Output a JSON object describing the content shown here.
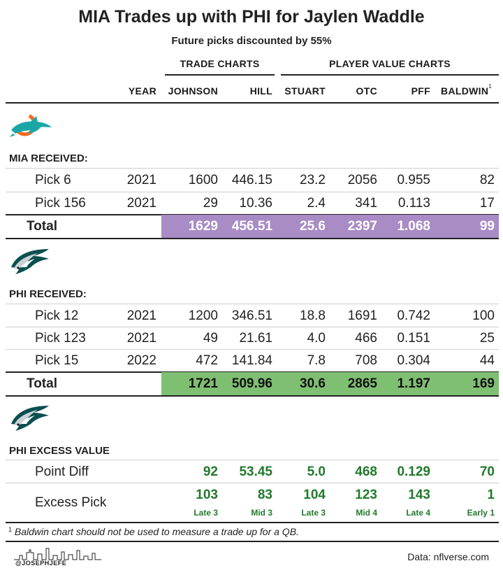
{
  "title": "MIA Trades up with PHI for Jaylen Waddle",
  "subtitle": "Future picks discounted by 55%",
  "groups": {
    "trade": "TRADE CHARTS",
    "player": "PLAYER VALUE CHARTS"
  },
  "columns": {
    "year": "YEAR",
    "johnson": "JOHNSON",
    "hill": "HILL",
    "stuart": "STUART",
    "otc": "OTC",
    "pff": "PFF",
    "baldwin": "BALDWIN",
    "baldwin_mark": "1"
  },
  "mia": {
    "label": "MIA RECEIVED:",
    "rows": [
      {
        "name": "Pick 6",
        "year": "2021",
        "johnson": "1600",
        "hill": "446.15",
        "stuart": "23.2",
        "otc": "2056",
        "pff": "0.955",
        "baldwin": "82"
      },
      {
        "name": "Pick 156",
        "year": "2021",
        "johnson": "29",
        "hill": "10.36",
        "stuart": "2.4",
        "otc": "341",
        "pff": "0.113",
        "baldwin": "17"
      }
    ],
    "total": {
      "name": "Total",
      "johnson": "1629",
      "hill": "456.51",
      "stuart": "25.6",
      "otc": "2397",
      "pff": "1.068",
      "baldwin": "99"
    }
  },
  "phi": {
    "label": "PHI RECEIVED:",
    "rows": [
      {
        "name": "Pick 12",
        "year": "2021",
        "johnson": "1200",
        "hill": "346.51",
        "stuart": "18.8",
        "otc": "1691",
        "pff": "0.742",
        "baldwin": "100"
      },
      {
        "name": "Pick 123",
        "year": "2021",
        "johnson": "49",
        "hill": "21.61",
        "stuart": "4.0",
        "otc": "466",
        "pff": "0.151",
        "baldwin": "25"
      },
      {
        "name": "Pick 15",
        "year": "2022",
        "johnson": "472",
        "hill": "141.84",
        "stuart": "7.8",
        "otc": "708",
        "pff": "0.304",
        "baldwin": "44"
      }
    ],
    "total": {
      "name": "Total",
      "johnson": "1721",
      "hill": "509.96",
      "stuart": "30.6",
      "otc": "2865",
      "pff": "1.197",
      "baldwin": "169"
    }
  },
  "excess": {
    "label": "PHI EXCESS VALUE",
    "diff": {
      "name": "Point Diff",
      "johnson": "92",
      "hill": "53.45",
      "stuart": "5.0",
      "otc": "468",
      "pff": "0.129",
      "baldwin": "70"
    },
    "pick": {
      "name": "Excess Pick",
      "johnson": "103",
      "hill": "83",
      "stuart": "104",
      "otc": "123",
      "pff": "143",
      "baldwin": "1"
    },
    "pick_labels": {
      "johnson": "Late 3",
      "hill": "Mid 3",
      "stuart": "Late 3",
      "otc": "Mid 4",
      "pff": "Late 4",
      "baldwin": "Early 1"
    }
  },
  "footnote": {
    "mark": "1",
    "text": " Baldwin chart should not be used to measure a trade up for a QB."
  },
  "handle": "@JOSEPHJEFE",
  "source": "Data: nflverse.com",
  "colors": {
    "mia_total": "#a98bc6",
    "phi_total": "#7fbf72",
    "excess_green": "#217a2b",
    "dolphins_aqua": "#1aa6a6",
    "dolphins_orange": "#f26a21",
    "eagles_green": "#0b4f50"
  }
}
